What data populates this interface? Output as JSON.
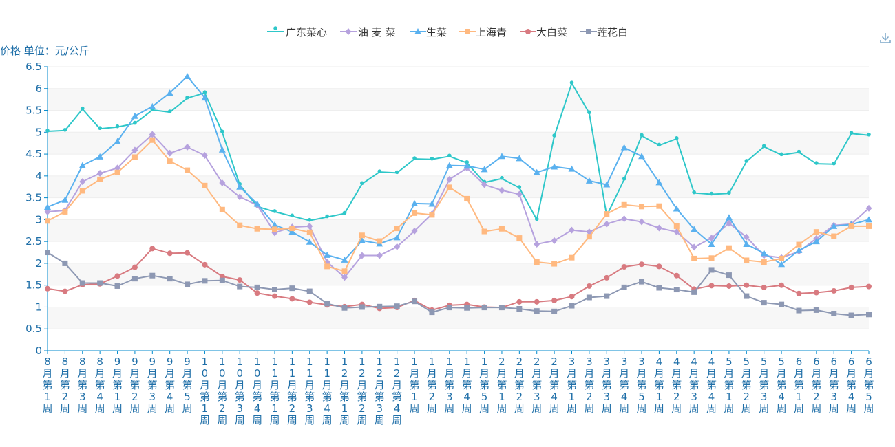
{
  "chart_data": {
    "type": "line",
    "ylabel": "价格 单位：元/公斤",
    "ylim": [
      0,
      6.5
    ],
    "yticks": [
      "0",
      "0.5",
      "1",
      "1.5",
      "2",
      "2.5",
      "3",
      "3.5",
      "4",
      "4.5",
      "5",
      "5.5",
      "6",
      "6.5"
    ],
    "grid": true,
    "legend_position": "top-center",
    "categories": [
      "8月第1周",
      "8月第2周",
      "8月第3周",
      "8月第4周",
      "9月第1周",
      "9月第2周",
      "9月第3周",
      "9月第4周",
      "9月第5周",
      "10月第1周",
      "10月第2周",
      "10月第3周",
      "10月第4周",
      "11月第1周",
      "11月第2周",
      "11月第3周",
      "11月第4周",
      "12月第1周",
      "12月第2周",
      "12月第3周",
      "12月第4周",
      "1月第1周",
      "1月第2周",
      "1月第3周",
      "1月第4周",
      "1月第5周",
      "2月第1周",
      "2月第2周",
      "2月第3周",
      "2月第4周",
      "3月第1周",
      "3月第2周",
      "3月第3周",
      "3月第4周",
      "3月第5周",
      "4月第1周",
      "4月第2周",
      "4月第3周",
      "4月第4周",
      "5月第1周",
      "5月第2周",
      "5月第3周",
      "5月第4周",
      "6月第1周",
      "6月第2周",
      "6月第3周",
      "6月第4周",
      "6月第5周"
    ],
    "series": [
      {
        "name": "广东菜心",
        "color": "#2ec7c9",
        "marker": "pin",
        "values": [
          5.02,
          5.04,
          5.53,
          5.08,
          5.12,
          5.2,
          5.51,
          5.46,
          5.78,
          5.9,
          5.0,
          3.8,
          3.3,
          3.18,
          3.08,
          2.98,
          3.06,
          3.14,
          3.82,
          4.09,
          4.07,
          4.39,
          4.38,
          4.45,
          4.3,
          3.85,
          3.94,
          3.73,
          3.0,
          4.91,
          6.12,
          5.44,
          3.09,
          3.92,
          4.92,
          4.7,
          4.85,
          3.61,
          3.58,
          3.6,
          4.33,
          4.67,
          4.48,
          4.54,
          4.28,
          4.27,
          4.97,
          4.93
        ]
      },
      {
        "name": "油 麦 菜",
        "color": "#b6a2de",
        "marker": "diamond",
        "values": [
          3.18,
          3.21,
          3.87,
          4.06,
          4.18,
          4.59,
          4.95,
          4.52,
          4.66,
          4.47,
          3.84,
          3.52,
          3.33,
          2.7,
          2.83,
          2.85,
          2.03,
          1.68,
          2.18,
          2.18,
          2.38,
          2.74,
          3.13,
          3.92,
          4.18,
          3.8,
          3.67,
          3.58,
          2.44,
          2.52,
          2.76,
          2.72,
          2.9,
          3.02,
          2.95,
          2.81,
          2.72,
          2.37,
          2.58,
          2.92,
          2.6,
          2.18,
          2.13,
          2.27,
          2.57,
          2.87,
          2.9,
          3.26
        ]
      },
      {
        "name": "生菜",
        "color": "#5ab1ef",
        "marker": "triangle",
        "values": [
          3.29,
          3.45,
          4.24,
          4.44,
          4.79,
          5.37,
          5.59,
          5.9,
          6.28,
          5.79,
          4.6,
          3.75,
          3.36,
          2.88,
          2.72,
          2.49,
          2.19,
          2.08,
          2.52,
          2.45,
          2.59,
          3.37,
          3.36,
          4.24,
          4.23,
          4.15,
          4.45,
          4.4,
          4.08,
          4.21,
          4.16,
          3.89,
          3.8,
          4.65,
          4.45,
          3.85,
          3.25,
          2.78,
          2.44,
          3.05,
          2.44,
          2.23,
          1.98,
          2.3,
          2.5,
          2.85,
          2.89,
          3.0
        ]
      },
      {
        "name": "上海青",
        "color": "#ffb980",
        "marker": "square",
        "values": [
          2.97,
          3.18,
          3.66,
          3.92,
          4.08,
          4.43,
          4.82,
          4.34,
          4.13,
          3.78,
          3.23,
          2.87,
          2.79,
          2.78,
          2.8,
          2.71,
          1.93,
          1.82,
          2.64,
          2.51,
          2.8,
          3.15,
          3.11,
          3.74,
          3.48,
          2.73,
          2.79,
          2.58,
          2.03,
          1.99,
          2.13,
          2.61,
          3.13,
          3.34,
          3.3,
          3.31,
          2.85,
          2.11,
          2.12,
          2.35,
          2.07,
          2.03,
          2.11,
          2.43,
          2.72,
          2.62,
          2.85,
          2.85
        ]
      },
      {
        "name": "大白菜",
        "color": "#d87a80",
        "marker": "circle",
        "values": [
          1.42,
          1.36,
          1.51,
          1.53,
          1.71,
          1.91,
          2.34,
          2.23,
          2.24,
          1.97,
          1.7,
          1.62,
          1.32,
          1.25,
          1.19,
          1.11,
          1.05,
          1.01,
          1.06,
          0.97,
          0.99,
          1.15,
          0.93,
          1.04,
          1.06,
          1.0,
          0.99,
          1.12,
          1.12,
          1.15,
          1.24,
          1.48,
          1.67,
          1.92,
          1.98,
          1.93,
          1.72,
          1.41,
          1.49,
          1.48,
          1.5,
          1.45,
          1.5,
          1.31,
          1.33,
          1.37,
          1.45,
          1.47
        ]
      },
      {
        "name": "莲花白",
        "color": "#8d98b3",
        "marker": "square",
        "values": [
          2.25,
          2.0,
          1.55,
          1.55,
          1.48,
          1.65,
          1.72,
          1.65,
          1.52,
          1.6,
          1.61,
          1.47,
          1.45,
          1.4,
          1.43,
          1.36,
          1.08,
          0.98,
          1.0,
          1.01,
          1.02,
          1.13,
          0.88,
          0.99,
          0.98,
          0.99,
          0.99,
          0.96,
          0.91,
          0.9,
          1.03,
          1.22,
          1.25,
          1.45,
          1.58,
          1.44,
          1.4,
          1.34,
          1.85,
          1.73,
          1.25,
          1.1,
          1.06,
          0.92,
          0.93,
          0.85,
          0.81,
          0.83
        ]
      }
    ]
  }
}
